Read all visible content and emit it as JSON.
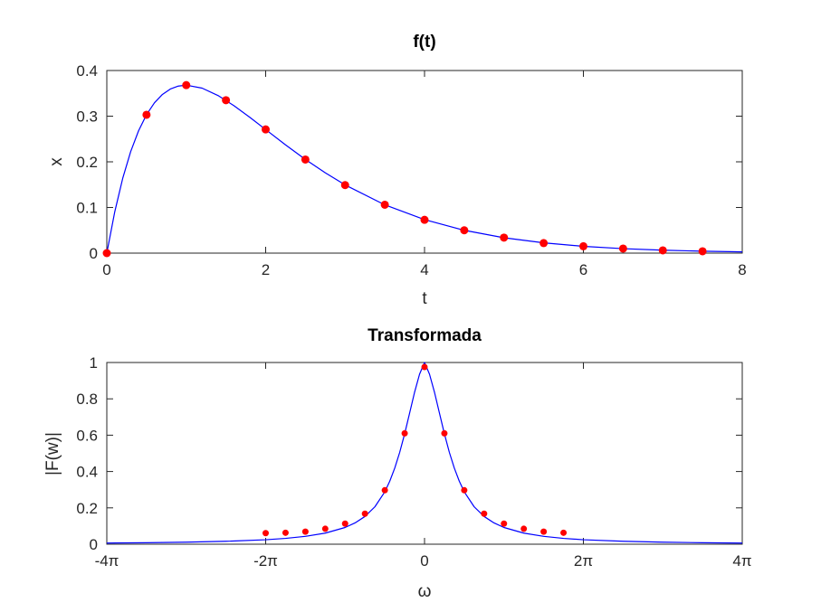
{
  "chart_data": [
    {
      "type": "line",
      "title": "f(t)",
      "xlabel": "t",
      "ylabel": "x",
      "xlim": [
        0,
        8
      ],
      "ylim": [
        0,
        0.4
      ],
      "xticks": [
        0,
        2,
        4,
        6,
        8
      ],
      "xtick_labels": [
        "0",
        "2",
        "4",
        "6",
        "8"
      ],
      "yticks": [
        0,
        0.1,
        0.2,
        0.3,
        0.4
      ],
      "ytick_labels": [
        "0",
        "0.1",
        "0.2",
        "0.3",
        "0.4"
      ],
      "series": [
        {
          "name": "curve",
          "style": "line",
          "color": "#0000ff",
          "x": [
            0,
            0.1,
            0.2,
            0.3,
            0.4,
            0.5,
            0.6,
            0.7,
            0.8,
            0.9,
            1.0,
            1.2,
            1.4,
            1.6,
            1.8,
            2.0,
            2.25,
            2.5,
            2.75,
            3.0,
            3.5,
            4.0,
            4.5,
            5.0,
            5.5,
            6.0,
            6.5,
            7.0,
            7.5,
            8.0
          ],
          "y": [
            0,
            0.0905,
            0.1637,
            0.2222,
            0.2681,
            0.3033,
            0.3293,
            0.3476,
            0.3595,
            0.3659,
            0.3679,
            0.3614,
            0.3452,
            0.323,
            0.2975,
            0.2707,
            0.2371,
            0.2052,
            0.176,
            0.1494,
            0.1057,
            0.0733,
            0.05,
            0.0337,
            0.0225,
            0.0149,
            0.0098,
            0.0064,
            0.0042,
            0.0027
          ]
        },
        {
          "name": "samples",
          "style": "markers",
          "color": "#ff0000",
          "x": [
            0,
            0.5,
            1.0,
            1.5,
            2.0,
            2.5,
            3.0,
            3.5,
            4.0,
            4.5,
            5.0,
            5.5,
            6.0,
            6.5,
            7.0,
            7.5
          ],
          "y": [
            0,
            0.303,
            0.368,
            0.335,
            0.271,
            0.205,
            0.149,
            0.106,
            0.073,
            0.05,
            0.034,
            0.022,
            0.015,
            0.01,
            0.006,
            0.004
          ]
        }
      ]
    },
    {
      "type": "line",
      "title": "Transformada",
      "xlabel": "ω",
      "ylabel": "|F(w)|",
      "xlim_over_pi": [
        -4,
        4
      ],
      "ylim": [
        0,
        1
      ],
      "xticks_over_pi": [
        -4,
        -2,
        0,
        2,
        4
      ],
      "xtick_labels": [
        "-4π",
        "-2π",
        "0",
        "2π",
        "4π"
      ],
      "yticks": [
        0,
        0.2,
        0.4,
        0.6,
        0.8,
        1
      ],
      "ytick_labels": [
        "0",
        "0.2",
        "0.4",
        "0.6",
        "0.8",
        "1"
      ],
      "series": [
        {
          "name": "curve",
          "style": "line",
          "color": "#0000ff",
          "x_over_pi": [
            -4,
            -3.5,
            -3,
            -2.5,
            -2,
            -1.75,
            -1.5,
            -1.25,
            -1,
            -0.875,
            -0.75,
            -0.625,
            -0.5,
            -0.4375,
            -0.375,
            -0.3125,
            -0.25,
            -0.1875,
            -0.125,
            -0.0625,
            0,
            0.0625,
            0.125,
            0.1875,
            0.25,
            0.3125,
            0.375,
            0.4375,
            0.5,
            0.625,
            0.75,
            0.875,
            1,
            1.25,
            1.5,
            1.75,
            2,
            2.5,
            3,
            3.5,
            4
          ],
          "y": [
            0.0063,
            0.0082,
            0.0111,
            0.016,
            0.0247,
            0.032,
            0.0431,
            0.0609,
            0.092,
            0.1171,
            0.1527,
            0.2058,
            0.2884,
            0.3469,
            0.4188,
            0.5056,
            0.6079,
            0.7218,
            0.8369,
            0.9358,
            1.0,
            0.9358,
            0.8369,
            0.7218,
            0.6079,
            0.5056,
            0.4188,
            0.3469,
            0.2884,
            0.2058,
            0.1527,
            0.1171,
            0.092,
            0.0609,
            0.0431,
            0.032,
            0.0247,
            0.016,
            0.0111,
            0.0082,
            0.0063
          ]
        },
        {
          "name": "samples",
          "style": "markers",
          "color": "#ff0000",
          "x_over_pi": [
            -2,
            -1.75,
            -1.5,
            -1.25,
            -1,
            -0.75,
            -0.5,
            -0.25,
            0,
            0.25,
            0.5,
            0.75,
            1,
            1.25,
            1.5,
            1.75
          ],
          "y": [
            0.061,
            0.063,
            0.069,
            0.085,
            0.113,
            0.168,
            0.297,
            0.61,
            0.975,
            0.61,
            0.297,
            0.168,
            0.113,
            0.085,
            0.069,
            0.063
          ]
        }
      ]
    }
  ]
}
